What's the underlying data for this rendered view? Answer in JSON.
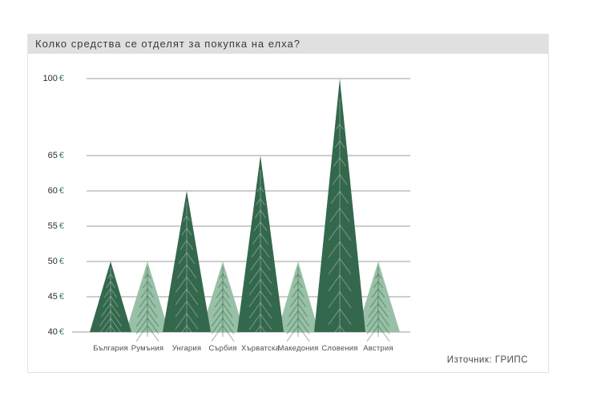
{
  "card": {
    "title": "Колко средства се отделят за покупка на елха?",
    "source_label": "Източник: ГРИПС",
    "title_band_bg": "#e0e0e0",
    "border_color": "#e3e3e3"
  },
  "chart_data": {
    "type": "bar",
    "variant": "christmas-tree-pictogram",
    "title": "Колко средства се отделят за покупка на елха?",
    "source": "Източник: ГРИПС",
    "categories": [
      "България",
      "Румъния",
      "Унгария",
      "Сърбия",
      "Хърватска",
      "Македония",
      "Словения",
      "Австрия"
    ],
    "values": [
      50,
      50,
      60,
      50,
      65,
      50,
      100,
      50
    ],
    "unit": "€",
    "xlabel": "",
    "ylabel": "",
    "ytick_values": [
      40,
      45,
      50,
      55,
      60,
      65,
      100
    ],
    "ytick_labels": [
      "40 €",
      "45 €",
      "50 €",
      "55 €",
      "60 €",
      "65 €",
      "100 €"
    ],
    "broken_axis": {
      "between": [
        65,
        100
      ]
    },
    "grid": true,
    "legend": "none",
    "color_pattern": [
      "dark",
      "light",
      "dark",
      "light",
      "dark",
      "light",
      "dark",
      "light"
    ],
    "colors": {
      "tree_dark": "#34684d",
      "tree_light": "#97c0a6",
      "branch_on_dark": "rgba(255,255,255,0.32)",
      "branch_on_light": "rgba(23,74,48,0.42)",
      "gridline": "#9c9c9c",
      "baseline": "#9c9c9c",
      "euro_sign": "#41785a",
      "tick_text": "#2d2d2d",
      "xlabel_text": "#4f4f4f"
    }
  }
}
